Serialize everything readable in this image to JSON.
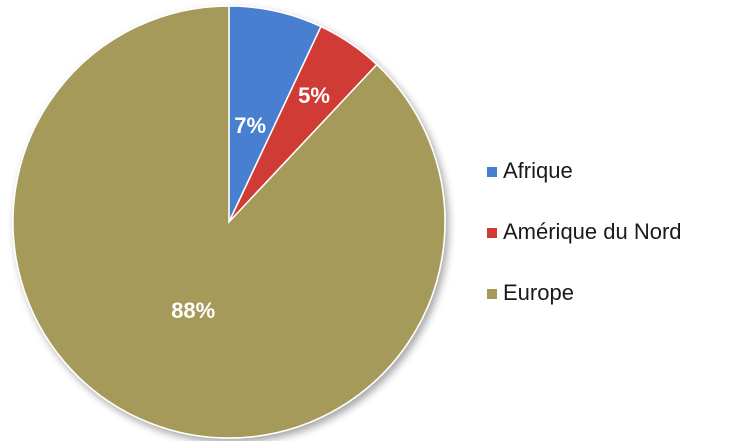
{
  "chart_data": {
    "type": "pie",
    "categories": [
      "Afrique",
      "Amérique du Nord",
      "Europe"
    ],
    "values": [
      7,
      5,
      88
    ],
    "labels": [
      "7%",
      "5%",
      "88%"
    ],
    "colors": [
      "#4a7fd0",
      "#d13a35",
      "#a59a5a"
    ],
    "title": "",
    "start_angle_deg": 0,
    "direction": "clockwise",
    "legend_position": "right"
  }
}
